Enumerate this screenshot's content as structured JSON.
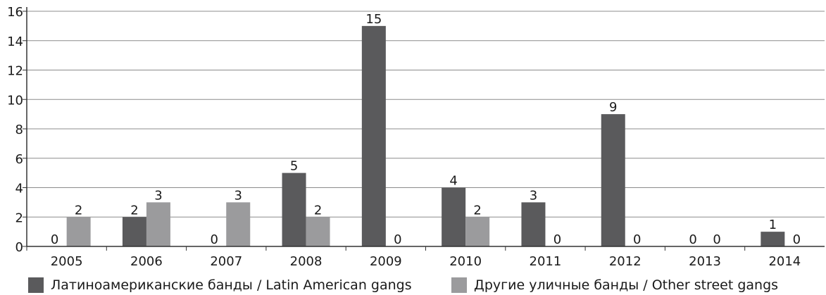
{
  "chart_data": {
    "type": "bar",
    "categories": [
      "2005",
      "2006",
      "2007",
      "2008",
      "2009",
      "2010",
      "2011",
      "2012",
      "2013",
      "2014"
    ],
    "series": [
      {
        "name": "Латиноамериканские банды / Latin American gangs",
        "values": [
          0,
          2,
          0,
          5,
          15,
          4,
          3,
          9,
          0,
          1
        ],
        "color": "#5a5a5c"
      },
      {
        "name": "Другие уличные банды / Other street gangs",
        "values": [
          2,
          3,
          3,
          2,
          0,
          2,
          0,
          0,
          0,
          0
        ],
        "color": "#9b9b9d"
      }
    ],
    "ylim": [
      0,
      16
    ],
    "yticks": [
      "0",
      "2",
      "4",
      "6",
      "8",
      "10",
      "12",
      "14",
      "16"
    ],
    "grid": true,
    "legend_position": "bottom"
  }
}
